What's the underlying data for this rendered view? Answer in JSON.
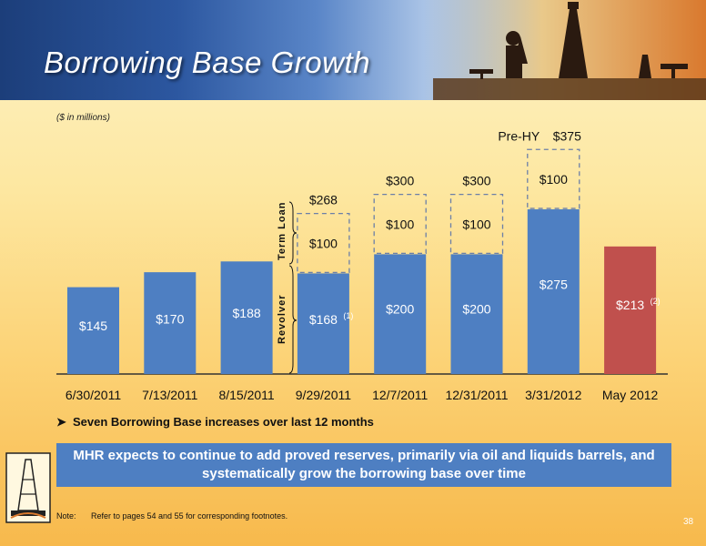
{
  "slide": {
    "title": "Borrowing Base Growth",
    "units": "($ in millions)",
    "bullet": "Seven Borrowing Base increases over last 12 months",
    "callout": "MHR expects to continue to add proved reserves, primarily via oil and liquids barrels, and systematically grow the borrowing base over time",
    "note_label": "Note:",
    "note_text": "Refer to pages 54 and 55 for corresponding footnotes.",
    "page_number": "38",
    "prehy_label": "Pre-HY",
    "term_loan_label": "Term Loan",
    "revolver_label": "Revolver",
    "colors": {
      "bar": "#4e7fc2",
      "highlight": "#c0504d",
      "dashed": "#6b7fa8"
    }
  },
  "chart_data": {
    "type": "bar",
    "categories": [
      "6/30/2011",
      "7/13/2011",
      "8/15/2011",
      "9/29/2011",
      "12/7/2011",
      "12/31/2011",
      "3/31/2012",
      "May 2012"
    ],
    "series": [
      {
        "name": "Revolver",
        "values": [
          145,
          170,
          188,
          168,
          200,
          200,
          275,
          213
        ]
      },
      {
        "name": "Term Loan",
        "values": [
          0,
          0,
          0,
          100,
          100,
          100,
          100,
          0
        ]
      }
    ],
    "bar_labels": [
      "$145",
      "$170",
      "$188",
      "$168",
      "$200",
      "$200",
      "$275",
      "$213"
    ],
    "term_labels": [
      "",
      "",
      "",
      "$100",
      "$100",
      "$100",
      "$100",
      ""
    ],
    "total_labels": [
      "",
      "",
      "",
      "$268",
      "$300",
      "$300",
      "$375",
      ""
    ],
    "superscripts": [
      "",
      "",
      "",
      "(1)",
      "",
      "",
      "",
      "(2)"
    ],
    "highlight_index": 7,
    "ylim": [
      0,
      400
    ]
  }
}
